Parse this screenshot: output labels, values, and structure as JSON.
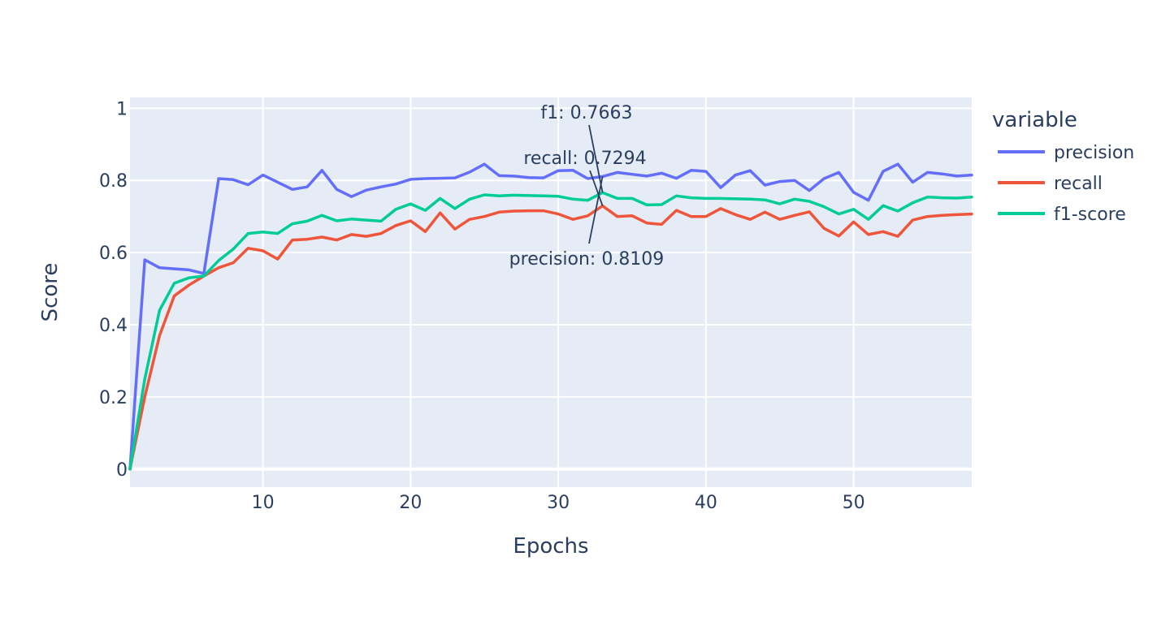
{
  "chart_data": {
    "type": "line",
    "xlabel": "Epochs",
    "ylabel": "Score",
    "xlim": [
      1,
      58
    ],
    "ylim": [
      -0.05,
      1.03
    ],
    "x_ticks": [
      10,
      20,
      30,
      40,
      50
    ],
    "y_ticks": [
      0,
      0.2,
      0.4,
      0.6,
      0.8,
      1
    ],
    "y_tick_labels": [
      "0",
      "0.2",
      "0.4",
      "0.6",
      "0.8",
      "1"
    ],
    "grid": true,
    "legend": {
      "title": "variable",
      "placement": "right"
    },
    "x": [
      1,
      2,
      3,
      4,
      5,
      6,
      7,
      8,
      9,
      10,
      11,
      12,
      13,
      14,
      15,
      16,
      17,
      18,
      19,
      20,
      21,
      22,
      23,
      24,
      25,
      26,
      27,
      28,
      29,
      30,
      31,
      32,
      33,
      34,
      35,
      36,
      37,
      38,
      39,
      40,
      41,
      42,
      43,
      44,
      45,
      46,
      47,
      48,
      49,
      50,
      51,
      52,
      53,
      54,
      55,
      56,
      57,
      58
    ],
    "series": [
      {
        "name": "precision",
        "color": "#636efa",
        "values": [
          0.0,
          0.58,
          0.558,
          0.555,
          0.552,
          0.542,
          0.805,
          0.802,
          0.788,
          0.815,
          0.795,
          0.775,
          0.782,
          0.828,
          0.775,
          0.755,
          0.773,
          0.782,
          0.79,
          0.803,
          0.805,
          0.806,
          0.807,
          0.823,
          0.845,
          0.813,
          0.812,
          0.808,
          0.807,
          0.827,
          0.828,
          0.805,
          0.8109,
          0.822,
          0.817,
          0.812,
          0.82,
          0.806,
          0.828,
          0.825,
          0.78,
          0.815,
          0.827,
          0.787,
          0.797,
          0.8,
          0.772,
          0.805,
          0.822,
          0.767,
          0.745,
          0.825,
          0.845,
          0.795,
          0.822,
          0.818,
          0.812,
          0.815
        ]
      },
      {
        "name": "recall",
        "color": "#ef553b",
        "values": [
          0.0,
          0.2,
          0.37,
          0.48,
          0.51,
          0.535,
          0.558,
          0.572,
          0.612,
          0.605,
          0.582,
          0.635,
          0.637,
          0.643,
          0.635,
          0.65,
          0.645,
          0.653,
          0.675,
          0.688,
          0.658,
          0.71,
          0.665,
          0.692,
          0.7,
          0.712,
          0.715,
          0.716,
          0.716,
          0.707,
          0.692,
          0.702,
          0.7294,
          0.7,
          0.702,
          0.682,
          0.678,
          0.717,
          0.7,
          0.7,
          0.722,
          0.705,
          0.692,
          0.712,
          0.692,
          0.703,
          0.713,
          0.667,
          0.646,
          0.685,
          0.65,
          0.658,
          0.645,
          0.69,
          0.7,
          0.703,
          0.705,
          0.707
        ]
      },
      {
        "name": "f1-score",
        "color": "#00cc96",
        "values": [
          0.0,
          0.25,
          0.44,
          0.515,
          0.53,
          0.535,
          0.578,
          0.61,
          0.653,
          0.657,
          0.653,
          0.68,
          0.687,
          0.703,
          0.688,
          0.693,
          0.69,
          0.687,
          0.72,
          0.735,
          0.717,
          0.75,
          0.722,
          0.748,
          0.76,
          0.757,
          0.759,
          0.758,
          0.757,
          0.756,
          0.748,
          0.745,
          0.7663,
          0.75,
          0.75,
          0.732,
          0.733,
          0.757,
          0.752,
          0.75,
          0.75,
          0.749,
          0.748,
          0.746,
          0.735,
          0.748,
          0.742,
          0.727,
          0.707,
          0.72,
          0.692,
          0.73,
          0.715,
          0.738,
          0.754,
          0.752,
          0.751,
          0.754
        ]
      }
    ],
    "annotations": [
      {
        "text": "f1: 0.7663",
        "x": 33,
        "y": 0.7663,
        "anchor": "above"
      },
      {
        "text": "recall: 0.7294",
        "x": 33,
        "y": 0.7294,
        "anchor": "above"
      },
      {
        "text": "precision: 0.8109",
        "x": 33,
        "y": 0.8109,
        "anchor": "below"
      }
    ]
  }
}
